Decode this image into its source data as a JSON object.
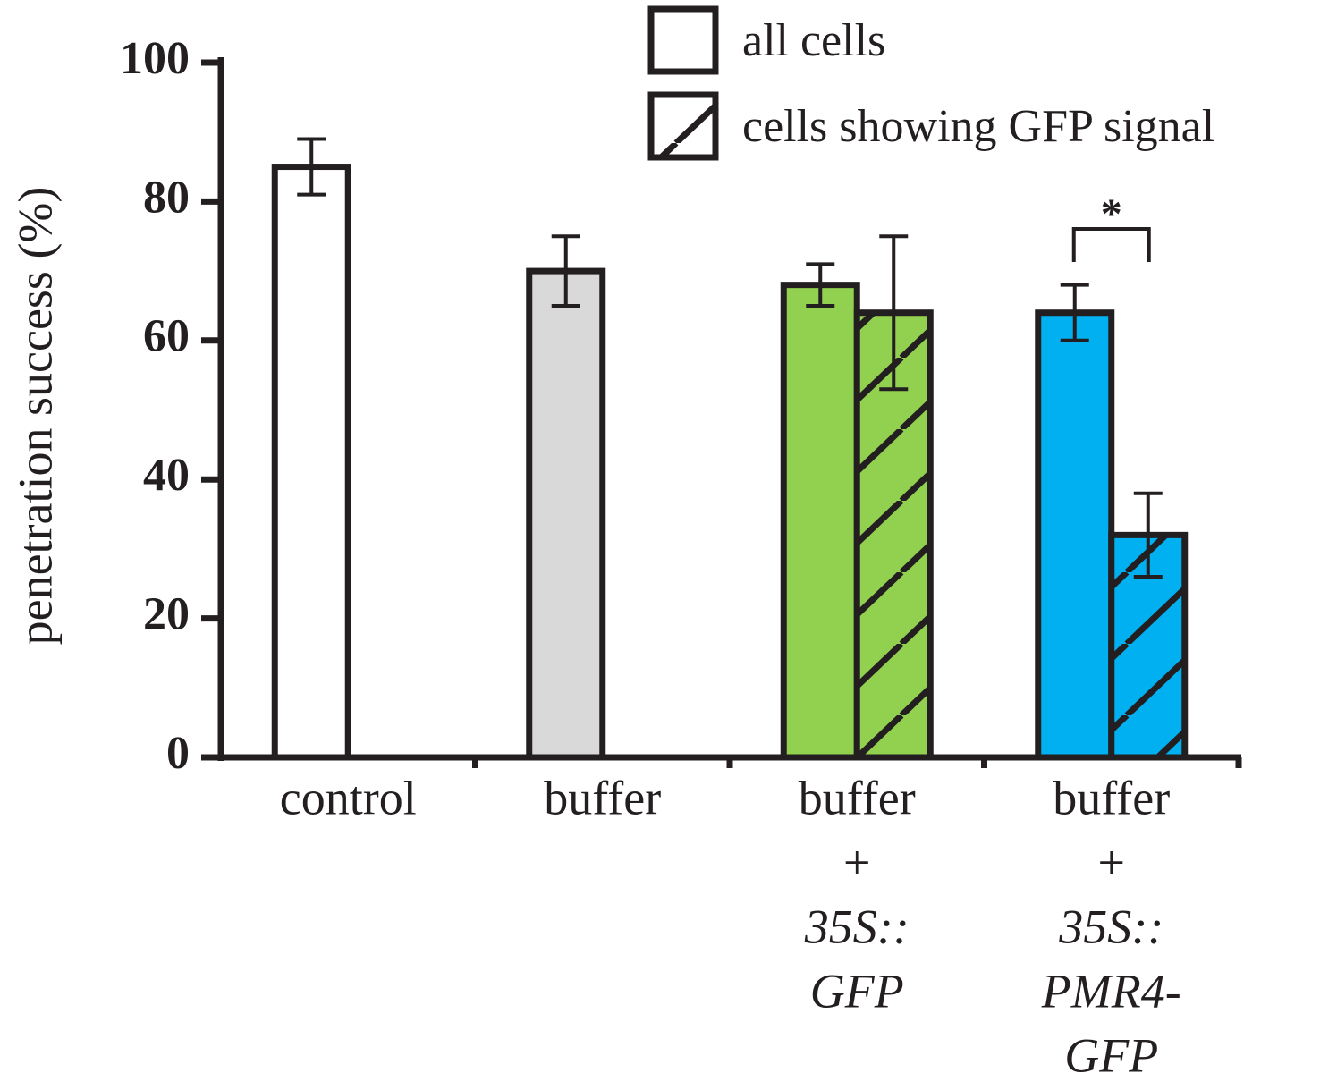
{
  "chart_data": {
    "type": "bar",
    "ylabel": "penetration success (%)",
    "categories": [
      [
        "control"
      ],
      [
        "buffer"
      ],
      [
        "buffer",
        "+",
        "35S::",
        "GFP"
      ],
      [
        "buffer",
        "+",
        "35S::",
        "PMR4-",
        "GFP"
      ]
    ],
    "bar_colors": [
      "#ffffff",
      "#d9d9d9",
      "#92d050",
      "#00b0f0"
    ],
    "series": [
      {
        "name": "all cells",
        "hatch": false,
        "values": [
          85,
          70,
          68,
          64
        ],
        "errors": [
          4,
          5,
          3,
          4
        ]
      },
      {
        "name": "cells showing GFP signal",
        "hatch": true,
        "values": [
          null,
          null,
          64,
          32
        ],
        "errors": [
          null,
          null,
          11,
          6
        ]
      }
    ],
    "ylim": [
      0,
      100
    ],
    "yticks": [
      0,
      20,
      40,
      60,
      80,
      100
    ],
    "annotation": "*",
    "legend": "top-right"
  }
}
